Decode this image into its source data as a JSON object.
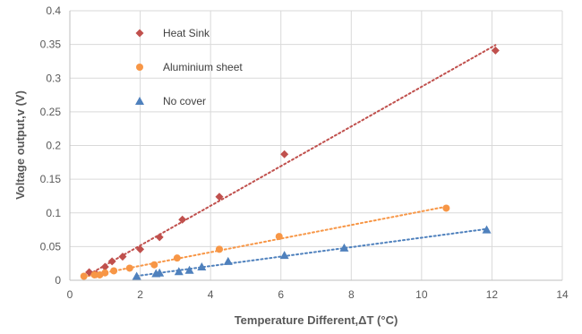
{
  "chart_data": {
    "type": "scatter",
    "xlabel": "Temperature Different,ΔT (°C)",
    "ylabel": "Voltage output,v (V)",
    "xlim": [
      0,
      14
    ],
    "ylim": [
      0,
      0.4
    ],
    "x_ticks": [
      0,
      2,
      4,
      6,
      8,
      10,
      12,
      14
    ],
    "y_ticks": [
      0,
      0.05,
      0.1,
      0.15,
      0.2,
      0.25,
      0.3,
      0.35,
      0.4
    ],
    "x_tick_labels": [
      "0",
      "2",
      "4",
      "6",
      "8",
      "10",
      "12",
      "14"
    ],
    "y_tick_labels": [
      "0",
      "0.05",
      "0.1",
      "0.15",
      "0.2",
      "0.25",
      "0.3",
      "0.35",
      "0.4"
    ],
    "grid": true,
    "legend_position": "top-left",
    "series": [
      {
        "name": "Heat Sink",
        "marker": "diamond",
        "color": "#C0504D",
        "trendline": true,
        "points": [
          [
            0.55,
            0.012
          ],
          [
            0.75,
            0.009
          ],
          [
            1.0,
            0.02
          ],
          [
            1.2,
            0.028
          ],
          [
            1.5,
            0.035
          ],
          [
            2.0,
            0.046
          ],
          [
            2.55,
            0.064
          ],
          [
            3.2,
            0.09
          ],
          [
            4.25,
            0.124
          ],
          [
            6.1,
            0.187
          ],
          [
            12.1,
            0.341
          ]
        ]
      },
      {
        "name": "Aluminium sheet",
        "marker": "circle",
        "color": "#F79646",
        "trendline": true,
        "points": [
          [
            0.4,
            0.006
          ],
          [
            0.7,
            0.008
          ],
          [
            0.85,
            0.008
          ],
          [
            1.0,
            0.011
          ],
          [
            1.25,
            0.014
          ],
          [
            1.7,
            0.018
          ],
          [
            2.4,
            0.023
          ],
          [
            3.05,
            0.033
          ],
          [
            4.25,
            0.046
          ],
          [
            5.95,
            0.065
          ],
          [
            10.7,
            0.107
          ]
        ]
      },
      {
        "name": "No cover",
        "marker": "triangle",
        "color": "#4F81BD",
        "trendline": true,
        "points": [
          [
            1.9,
            0.006
          ],
          [
            2.45,
            0.01
          ],
          [
            2.55,
            0.011
          ],
          [
            3.1,
            0.013
          ],
          [
            3.4,
            0.015
          ],
          [
            3.75,
            0.02
          ],
          [
            4.5,
            0.028
          ],
          [
            6.1,
            0.037
          ],
          [
            7.8,
            0.048
          ],
          [
            11.85,
            0.075
          ]
        ]
      }
    ]
  }
}
